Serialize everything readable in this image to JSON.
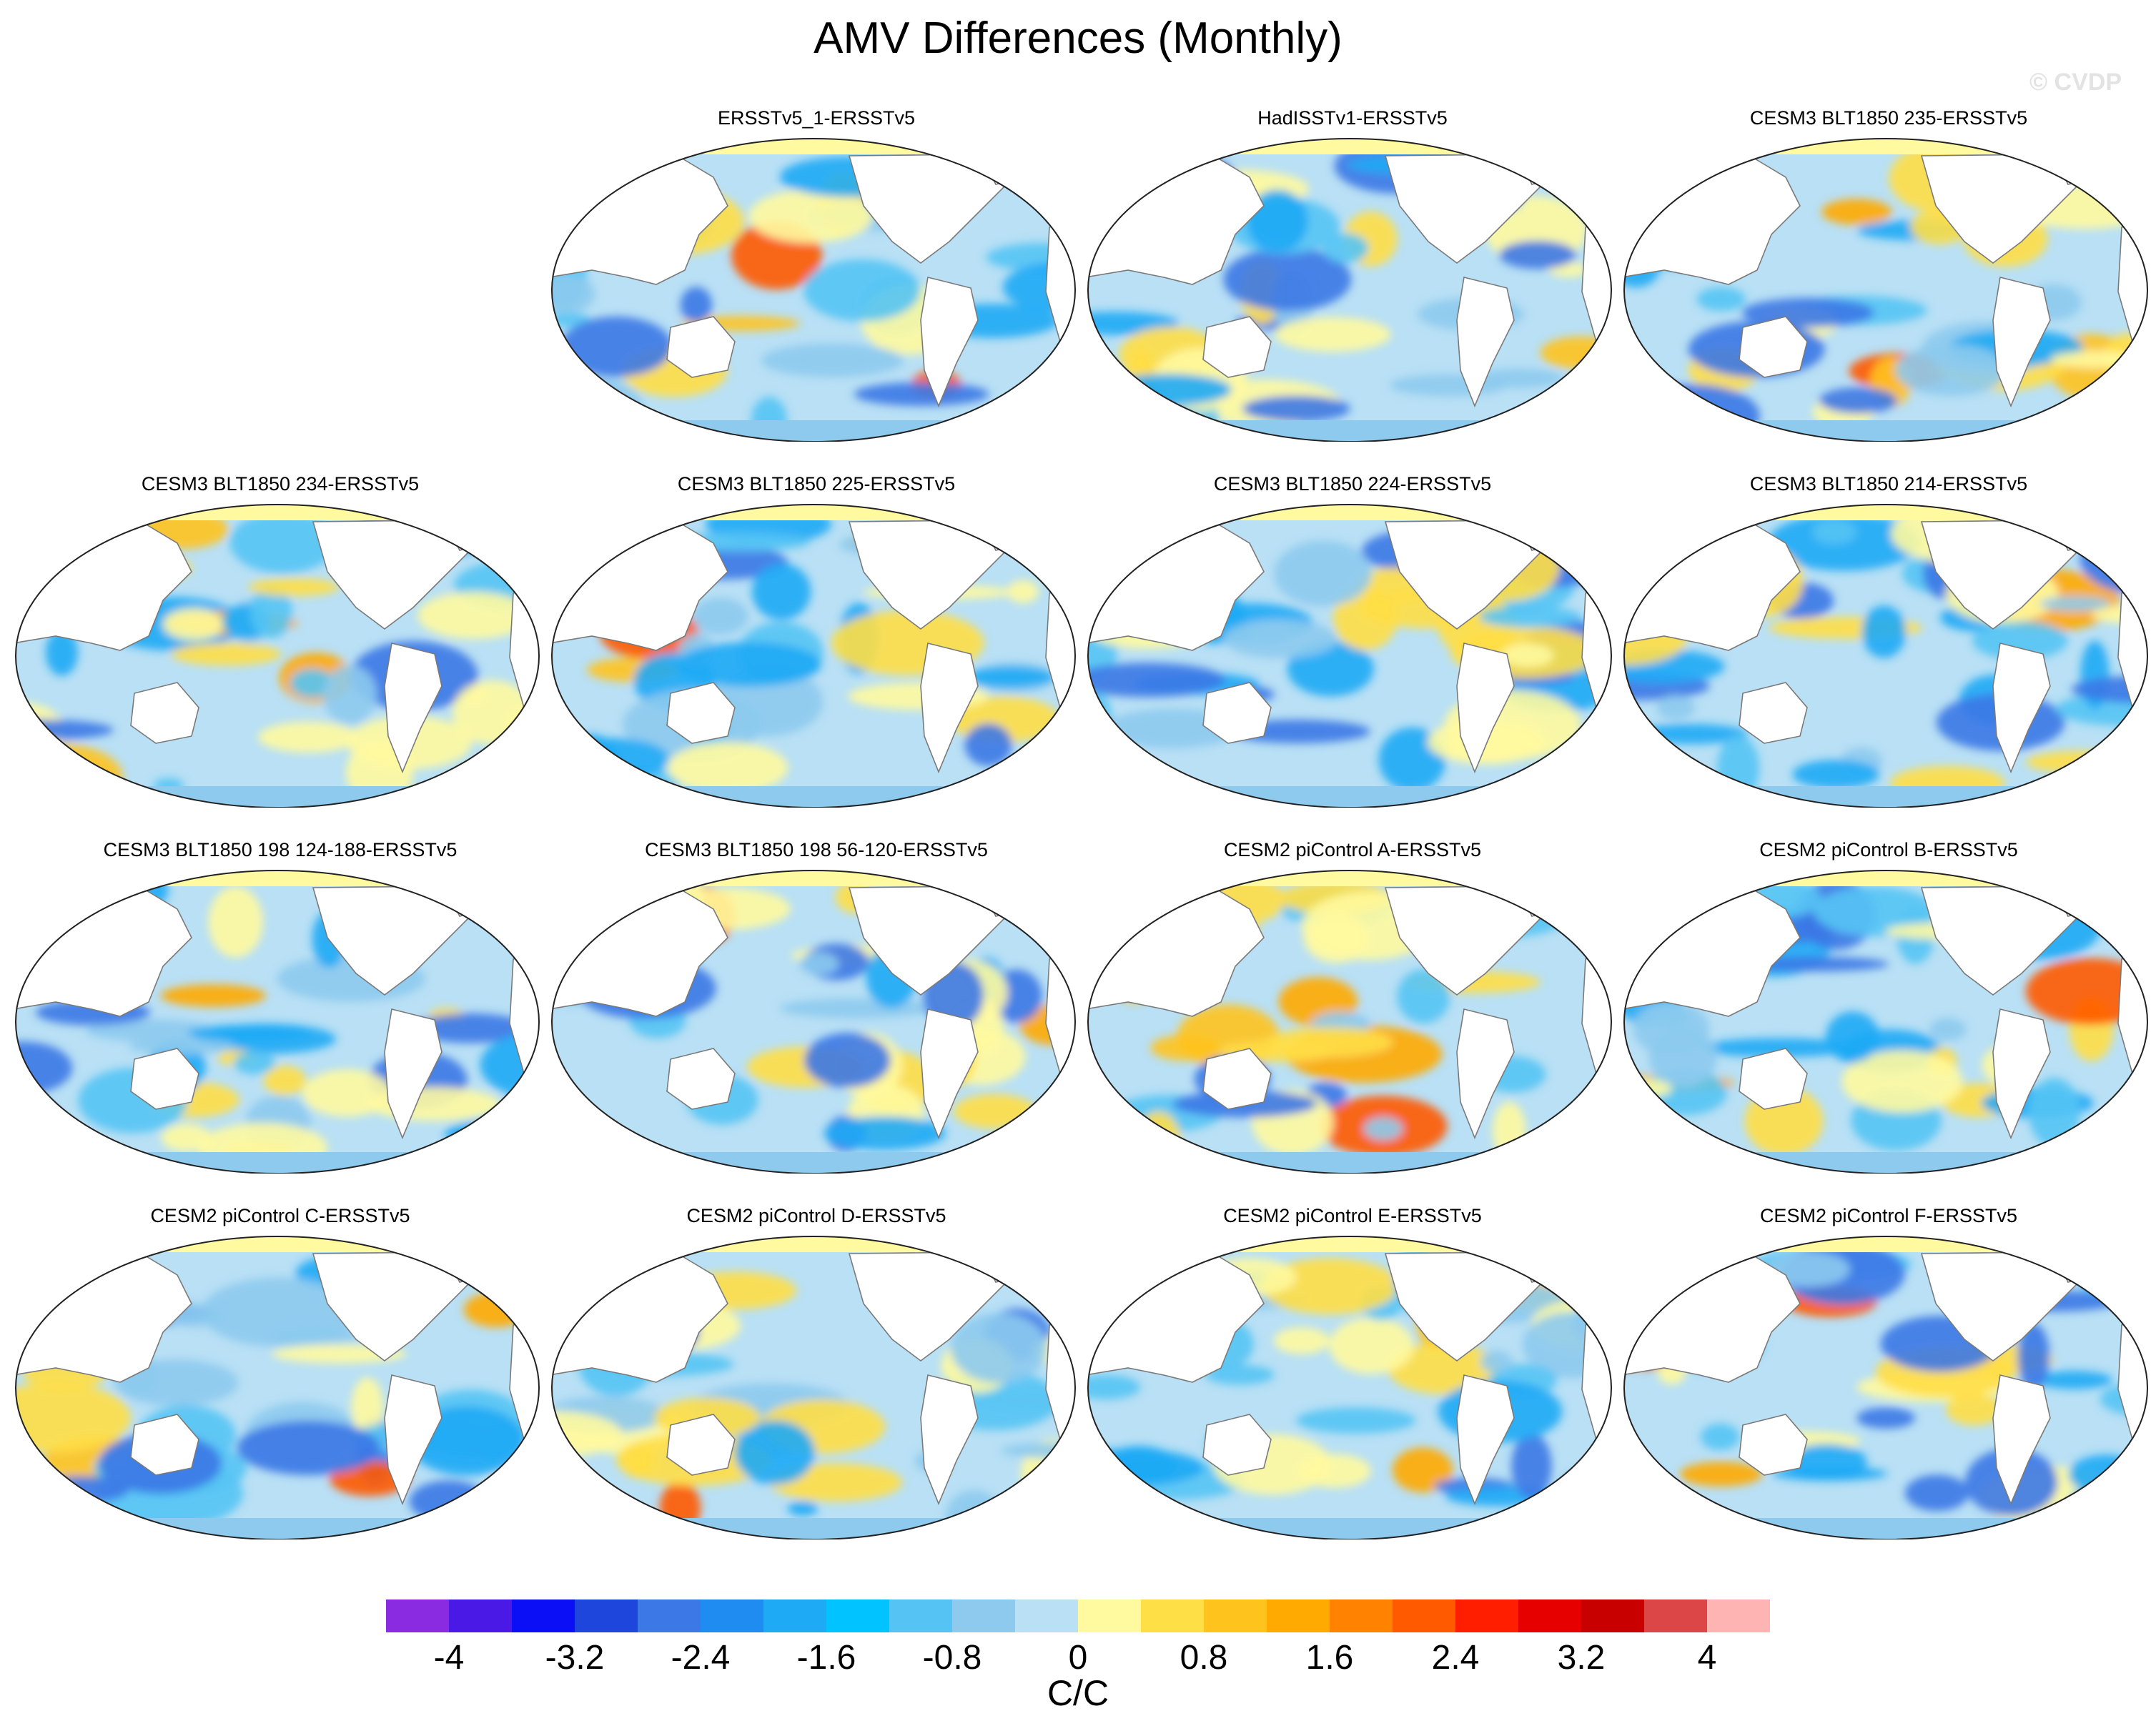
{
  "figure": {
    "title": "AMV Differences (Monthly)",
    "watermark": "© CVDP",
    "units": "C/C"
  },
  "panels": [
    {
      "label": "ERSSTv5_1-ERSSTv5",
      "variant": 0
    },
    {
      "label": "HadISSTv1-ERSSTv5",
      "variant": 1
    },
    {
      "label": "CESM3 BLT1850 235-ERSSTv5",
      "variant": 2
    },
    {
      "label": "CESM3 BLT1850 234-ERSSTv5",
      "variant": 3
    },
    {
      "label": "CESM3 BLT1850 225-ERSSTv5",
      "variant": 4
    },
    {
      "label": "CESM3 BLT1850 224-ERSSTv5",
      "variant": 5
    },
    {
      "label": "CESM3 BLT1850 214-ERSSTv5",
      "variant": 6
    },
    {
      "label": "CESM3 BLT1850 198 124-188-ERSSTv5",
      "variant": 7
    },
    {
      "label": "CESM3 BLT1850 198 56-120-ERSSTv5",
      "variant": 8
    },
    {
      "label": "CESM2 piControl A-ERSSTv5",
      "variant": 9
    },
    {
      "label": "CESM2 piControl B-ERSSTv5",
      "variant": 10
    },
    {
      "label": "CESM2 piControl C-ERSSTv5",
      "variant": 11
    },
    {
      "label": "CESM2 piControl D-ERSSTv5",
      "variant": 12
    },
    {
      "label": "CESM2 piControl E-ERSSTv5",
      "variant": 13
    },
    {
      "label": "CESM2 piControl F-ERSSTv5",
      "variant": 14
    }
  ],
  "colorbar": {
    "colors": [
      "#8a2be2",
      "#4b19e6",
      "#0a0ff5",
      "#1e46dc",
      "#3c78e6",
      "#1e8cf0",
      "#1eaaf5",
      "#00c3ff",
      "#55c4f4",
      "#8dcaee",
      "#b9e0f5",
      "#fffaa0",
      "#ffde46",
      "#ffc31e",
      "#ffaa00",
      "#ff8200",
      "#ff5a00",
      "#ff1e00",
      "#e60000",
      "#c80000",
      "#dc4646",
      "#ffb4b4"
    ],
    "tick_labels": [
      "-4",
      "-3.2",
      "-2.4",
      "-1.6",
      "-0.8",
      "0",
      "0.8",
      "1.6",
      "2.4",
      "3.2",
      "4"
    ]
  },
  "colors": {
    "land": "#ffffff",
    "coast": "#7a7a7a",
    "background_ocean": "#b9e0f5",
    "neg_light": "#8dcaee",
    "neg_mid": "#55c4f4",
    "neg_strong": "#1eaaf5",
    "neg_deep": "#3c78e6",
    "pos_light": "#fffaa0",
    "pos_mid": "#ffde46",
    "pos_strong": "#ffc31e",
    "pos_deep": "#ffaa00",
    "pos_hot": "#ff5a00"
  }
}
